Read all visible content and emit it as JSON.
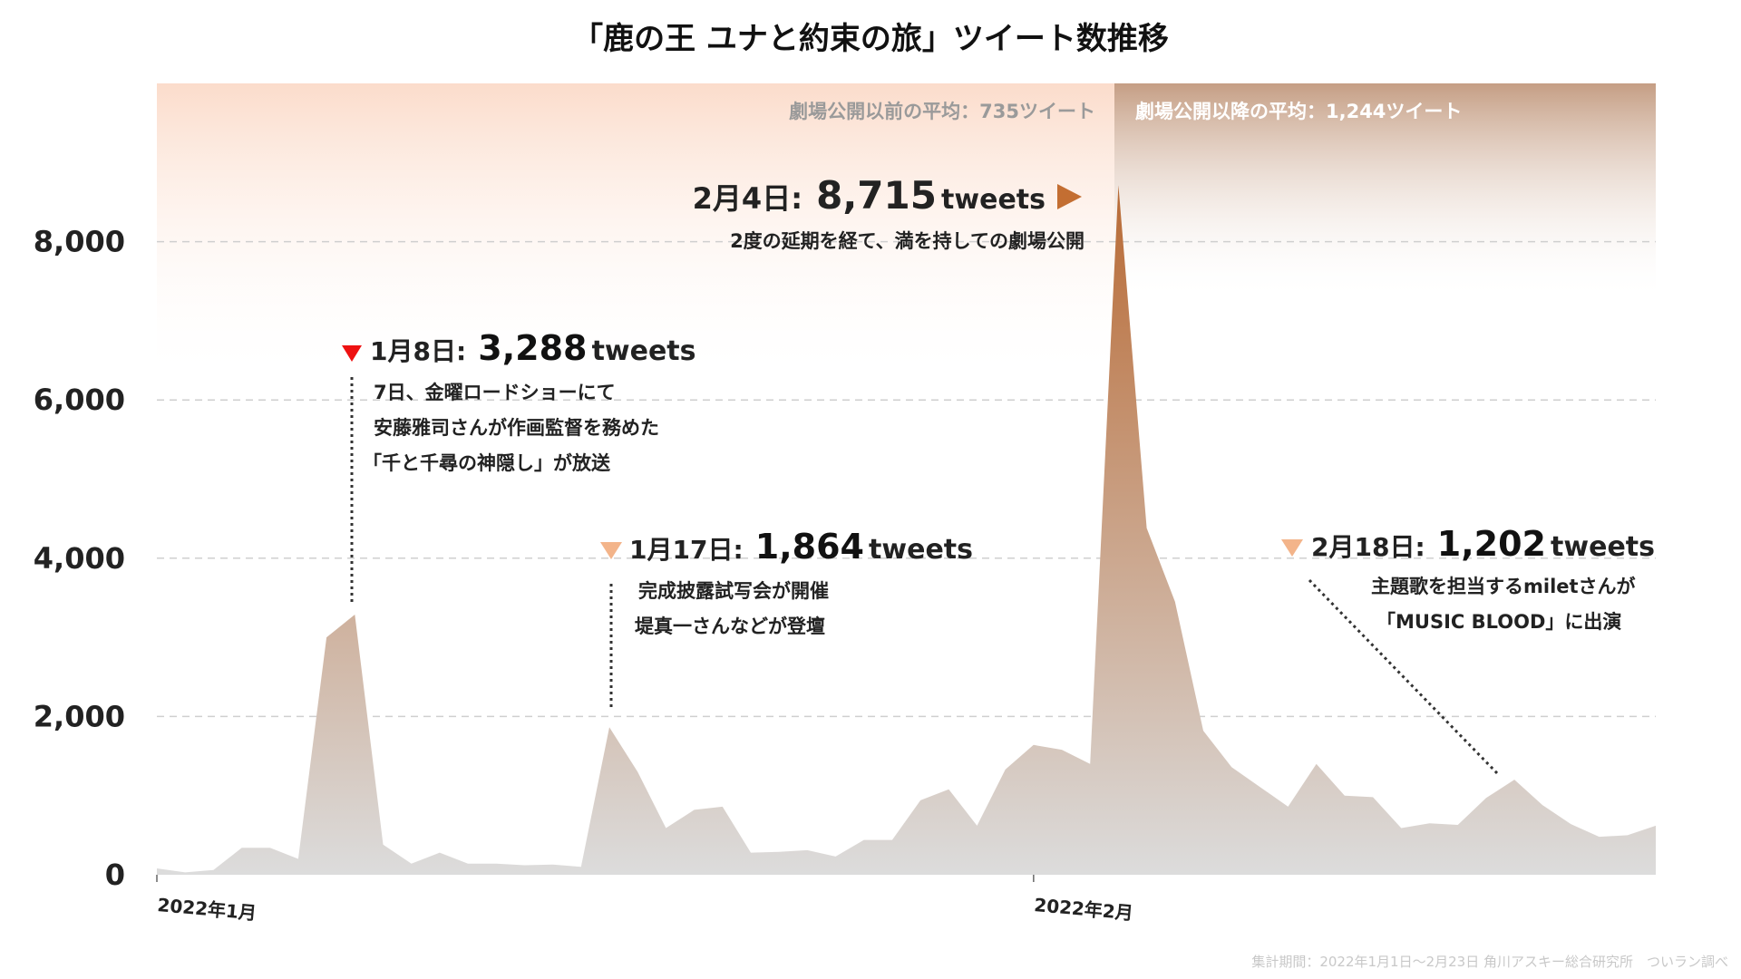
{
  "chart_data": {
    "type": "area",
    "title": "「鹿の王 ユナと約束の旅」ツイート数推移",
    "ylim": [
      0,
      10000
    ],
    "yticks": [
      0,
      2000,
      4000,
      6000,
      8000
    ],
    "ytick_labels": [
      "0",
      "2,000",
      "4,000",
      "6,000",
      "8,000"
    ],
    "x_range": [
      0,
      53
    ],
    "xticks": [
      {
        "index": 0,
        "label": "2022年1月"
      },
      {
        "index": 31,
        "label": "2022年2月"
      }
    ],
    "grid": true,
    "series": [
      {
        "values": [
          80,
          30,
          60,
          340,
          340,
          200,
          3000,
          3288,
          380,
          140,
          280,
          140,
          140,
          120,
          130,
          100,
          1864,
          1300,
          590,
          820,
          860,
          280,
          290,
          310,
          230,
          440,
          440,
          940,
          1080,
          620,
          1330,
          1640,
          1580,
          1400,
          8715,
          4380,
          3450,
          1820,
          1360,
          1110,
          860,
          1400,
          1000,
          980,
          590,
          650,
          630,
          970,
          1202,
          880,
          640,
          480,
          500,
          620
        ]
      }
    ],
    "colors": {
      "area_top": "#b86a35",
      "area_bottom": "#dcdcdc",
      "pre_band": "#fbdccb",
      "post_band": "#c59e84",
      "marker_red": "#ee1111",
      "marker_orange": "#f3b48a",
      "arrow_brown": "#c36e32"
    },
    "averages": [
      {
        "label": "劇場公開以前の平均：735ツイート",
        "color": "#9a9a9a"
      },
      {
        "label": "劇場公開以降の平均：1,244ツイート",
        "color": "#ffffff"
      }
    ],
    "annotations": [
      {
        "date": "1月8日:",
        "value": "3,288",
        "unit": "tweets",
        "lines": [
          "7日、金曜ロードショーにて",
          "安藤雅司さんが作画監督を務めた",
          "「千と千尋の神隠し」が放送"
        ]
      },
      {
        "date": "1月17日:",
        "value": "1,864",
        "unit": "tweets",
        "lines": [
          "完成披露試写会が開催",
          "堤真一さんなどが登壇"
        ]
      },
      {
        "date": "2月4日:",
        "value": "8,715",
        "unit": "tweets",
        "lines": [
          "2度の延期を経て、満を持しての劇場公開"
        ]
      },
      {
        "date": "2月18日:",
        "value": "1,202",
        "unit": "tweets",
        "lines": [
          "主題歌を担当するmiletさんが",
          "「MUSIC BLOOD」に出演"
        ]
      }
    ],
    "source": "集計期間：2022年1月1日～2月23日 角川アスキー総合研究所　ついラン調べ"
  }
}
